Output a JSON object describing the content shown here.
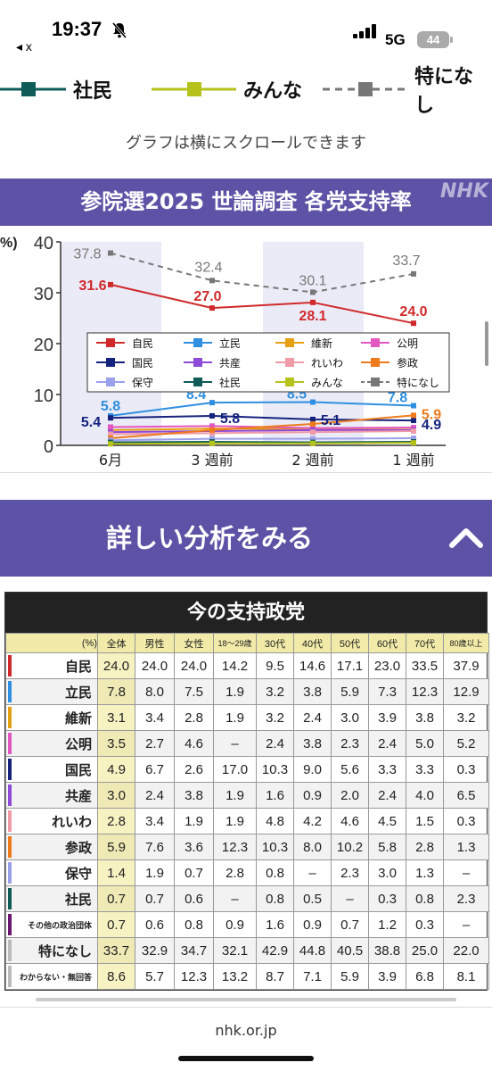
{
  "status": {
    "time": "19:37",
    "network": "5G",
    "battery": "44",
    "back_label": "x"
  },
  "legend_strip": [
    {
      "label": "社民",
      "color": "#0f5b58",
      "style": "solid"
    },
    {
      "label": "みんな",
      "color": "#b5c21b",
      "style": "solid"
    },
    {
      "label": "特になし",
      "color": "#777777",
      "style": "dashed"
    }
  ],
  "scroll_note": "グラフは横にスクロールできます",
  "chart_header": {
    "title": "参院選2025 世論調査 各党支持率",
    "logo": "NHK"
  },
  "chart_data": {
    "type": "line",
    "title": "参院選2025 世論調査 各党支持率",
    "ylabel": "%)",
    "ylim": [
      0,
      40
    ],
    "yticks": [
      "0",
      "10",
      "20",
      "30",
      "40"
    ],
    "categories": [
      "6月",
      "3 週前",
      "2 週前",
      "1 週前"
    ],
    "series": [
      {
        "name": "自民",
        "color": "#d0292b",
        "values": [
          31.6,
          27.0,
          28.1,
          24.0
        ],
        "labels": [
          "31.6",
          "27.0",
          "28.1",
          "24.0"
        ]
      },
      {
        "name": "立民",
        "color": "#2f8fe0",
        "values": [
          5.8,
          8.4,
          8.5,
          7.8
        ],
        "labels": [
          "5.8",
          "8.4",
          "8.5",
          "7.8"
        ]
      },
      {
        "name": "維新",
        "color": "#e5a013",
        "values": [
          3.0,
          3.3,
          3.2,
          3.1
        ],
        "labels": []
      },
      {
        "name": "公明",
        "color": "#e357c0",
        "values": [
          3.6,
          3.8,
          3.4,
          3.5
        ],
        "labels": []
      },
      {
        "name": "国民",
        "color": "#16237e",
        "values": [
          5.4,
          5.8,
          5.1,
          4.9
        ],
        "labels": [
          "5.4",
          "5.8",
          "5.1",
          "4.9"
        ]
      },
      {
        "name": "共産",
        "color": "#8f4ad8",
        "values": [
          2.6,
          2.8,
          3.0,
          3.0
        ],
        "labels": []
      },
      {
        "name": "れいわ",
        "color": "#f19aa8",
        "values": [
          2.2,
          2.4,
          2.6,
          2.8
        ],
        "labels": []
      },
      {
        "name": "参政",
        "color": "#ee7a1b",
        "values": [
          1.4,
          3.0,
          4.2,
          5.9
        ],
        "labels": [
          "",
          "",
          "",
          "5.9"
        ]
      },
      {
        "name": "保守",
        "color": "#9aa0ea",
        "values": [
          1.0,
          1.3,
          1.3,
          1.4
        ],
        "labels": []
      },
      {
        "name": "社民",
        "color": "#0f5b58",
        "values": [
          0.6,
          0.7,
          0.6,
          0.7
        ],
        "labels": []
      },
      {
        "name": "みんな",
        "color": "#b5c21b",
        "values": [
          0.3,
          0.4,
          0.4,
          0.5
        ],
        "labels": []
      },
      {
        "name": "特になし",
        "color": "#777777",
        "dashed": true,
        "values": [
          37.8,
          32.4,
          30.1,
          33.7
        ],
        "labels": [
          "37.8",
          "32.4",
          "30.1",
          "33.7"
        ]
      }
    ],
    "legend_position": "center",
    "grid": false
  },
  "analysis_button": {
    "label": "詳しい分析をみる"
  },
  "table": {
    "title": "今の支持政党",
    "headers": [
      "(%)",
      "全体",
      "男性",
      "女性",
      "18〜29歳",
      "30代",
      "40代",
      "50代",
      "60代",
      "70代",
      "80歳以上"
    ],
    "rows": [
      {
        "party": "自民",
        "color": "#d0292b",
        "values": [
          "24.0",
          "24.0",
          "24.0",
          "14.2",
          "9.5",
          "14.6",
          "17.1",
          "23.0",
          "33.5",
          "37.9"
        ]
      },
      {
        "party": "立民",
        "color": "#2f8fe0",
        "values": [
          "7.8",
          "8.0",
          "7.5",
          "1.9",
          "3.2",
          "3.8",
          "5.9",
          "7.3",
          "12.3",
          "12.9"
        ]
      },
      {
        "party": "維新",
        "color": "#e5a013",
        "values": [
          "3.1",
          "3.4",
          "2.8",
          "1.9",
          "3.2",
          "2.4",
          "3.0",
          "3.9",
          "3.8",
          "3.2"
        ]
      },
      {
        "party": "公明",
        "color": "#e357c0",
        "values": [
          "3.5",
          "2.7",
          "4.6",
          "–",
          "2.4",
          "3.8",
          "2.3",
          "2.4",
          "5.0",
          "5.2"
        ]
      },
      {
        "party": "国民",
        "color": "#16237e",
        "values": [
          "4.9",
          "6.7",
          "2.6",
          "17.0",
          "10.3",
          "9.0",
          "5.6",
          "3.3",
          "3.3",
          "0.3"
        ]
      },
      {
        "party": "共産",
        "color": "#8f4ad8",
        "values": [
          "3.0",
          "2.4",
          "3.8",
          "1.9",
          "1.6",
          "0.9",
          "2.0",
          "2.4",
          "4.0",
          "6.5"
        ]
      },
      {
        "party": "れいわ",
        "color": "#f19aa8",
        "values": [
          "2.8",
          "3.4",
          "1.9",
          "1.9",
          "4.8",
          "4.2",
          "4.6",
          "4.5",
          "1.5",
          "0.3"
        ]
      },
      {
        "party": "参政",
        "color": "#ee7a1b",
        "values": [
          "5.9",
          "7.6",
          "3.6",
          "12.3",
          "10.3",
          "8.0",
          "10.2",
          "5.8",
          "2.8",
          "1.3"
        ]
      },
      {
        "party": "保守",
        "color": "#9aa0ea",
        "values": [
          "1.4",
          "1.9",
          "0.7",
          "2.8",
          "0.8",
          "–",
          "2.3",
          "3.0",
          "1.3",
          "–"
        ]
      },
      {
        "party": "社民",
        "color": "#0f5b58",
        "values": [
          "0.7",
          "0.7",
          "0.6",
          "–",
          "0.8",
          "0.5",
          "–",
          "0.3",
          "0.8",
          "2.3"
        ]
      },
      {
        "party": "その他の政治団体",
        "color": "#6a1570",
        "values": [
          "0.7",
          "0.6",
          "0.8",
          "0.9",
          "1.6",
          "0.9",
          "0.7",
          "1.2",
          "0.3",
          "–"
        ]
      },
      {
        "party": "特になし",
        "color": "#bbbbbb",
        "values": [
          "33.7",
          "32.9",
          "34.7",
          "32.1",
          "42.9",
          "44.8",
          "40.5",
          "38.8",
          "25.0",
          "22.0"
        ]
      },
      {
        "party": "わからない・無回答",
        "color": "#bbbbbb",
        "values": [
          "8.6",
          "5.7",
          "12.3",
          "13.2",
          "8.7",
          "7.1",
          "5.9",
          "3.9",
          "6.8",
          "8.1"
        ]
      }
    ]
  },
  "footer": {
    "url": "nhk.or.jp"
  }
}
